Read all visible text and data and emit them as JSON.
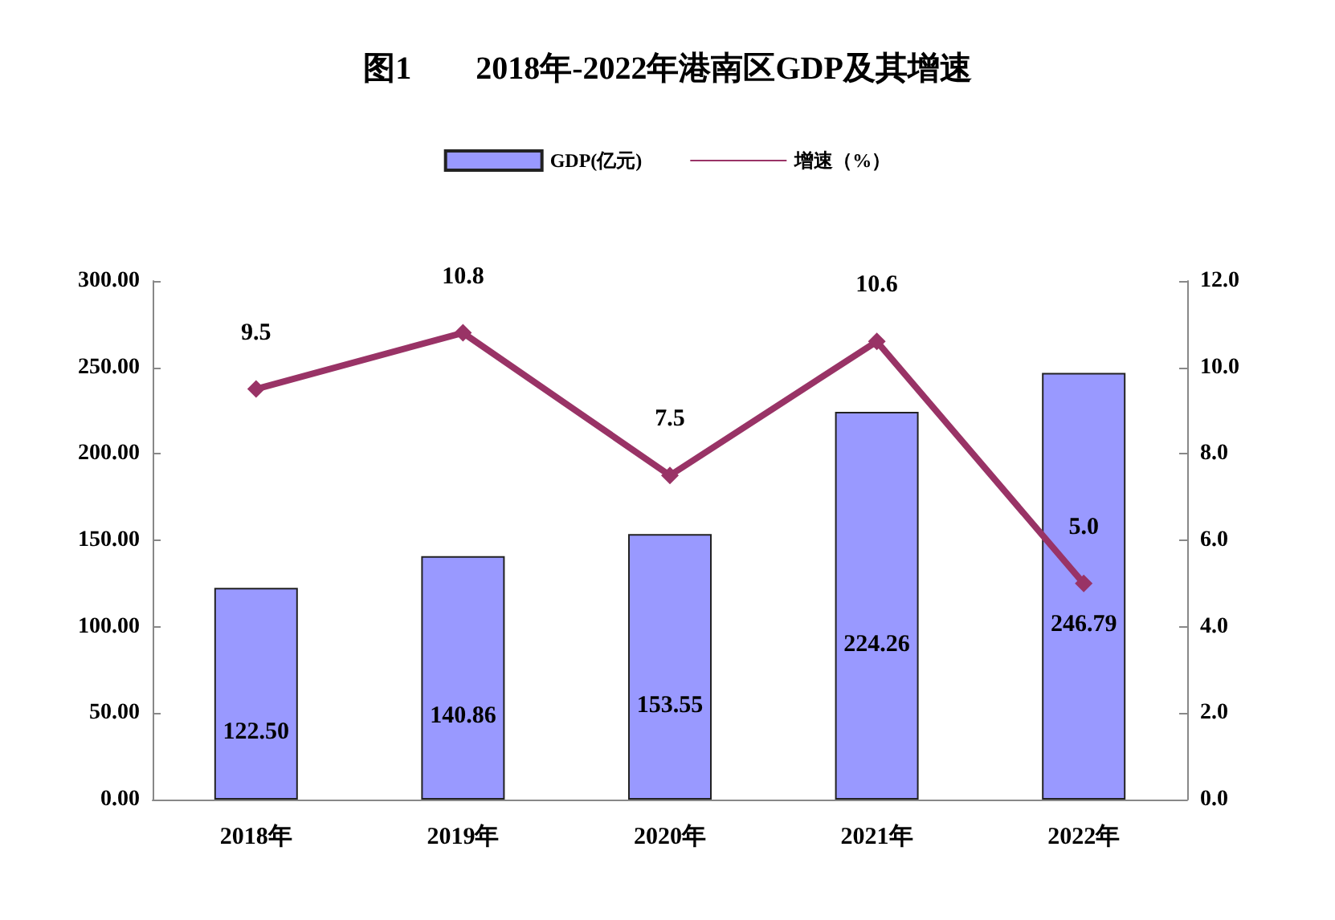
{
  "chart_data": {
    "type": "bar",
    "title": "图1        2018年-2022年港南区GDP及其增速",
    "categories": [
      "2018年",
      "2019年",
      "2020年",
      "2021年",
      "2022年"
    ],
    "series": [
      {
        "name": "GDP(亿元)",
        "color": "#9999ff",
        "values": [
          122.5,
          140.86,
          153.55,
          224.26,
          246.79
        ],
        "value_labels": [
          "122.50",
          "140.86",
          "153.55",
          "224.26",
          "246.79"
        ]
      },
      {
        "name": "增速（%）",
        "type": "line",
        "axis": "y2",
        "color": "#993366",
        "marker": "diamond",
        "values": [
          9.5,
          10.8,
          7.5,
          10.6,
          5.0
        ],
        "value_labels": [
          "9.5",
          "10.8",
          "7.5",
          "10.6",
          "5.0"
        ]
      }
    ],
    "ylim": [
      0,
      300
    ],
    "yticks": [
      {
        "value": 0,
        "label": "0.00"
      },
      {
        "value": 50,
        "label": "50.00"
      },
      {
        "value": 100,
        "label": "100.00"
      },
      {
        "value": 150,
        "label": "150.00"
      },
      {
        "value": 200,
        "label": "200.00"
      },
      {
        "value": 250,
        "label": "250.00"
      },
      {
        "value": 300,
        "label": "300.00"
      }
    ],
    "y2lim": [
      0,
      12
    ],
    "y2ticks": [
      {
        "value": 0,
        "label": "0.0"
      },
      {
        "value": 2,
        "label": "2.0"
      },
      {
        "value": 4,
        "label": "4.0"
      },
      {
        "value": 6,
        "label": "6.0"
      },
      {
        "value": 8,
        "label": "8.0"
      },
      {
        "value": 10,
        "label": "10.0"
      },
      {
        "value": 12,
        "label": "12.0"
      }
    ],
    "grid": false,
    "legend": "top"
  }
}
